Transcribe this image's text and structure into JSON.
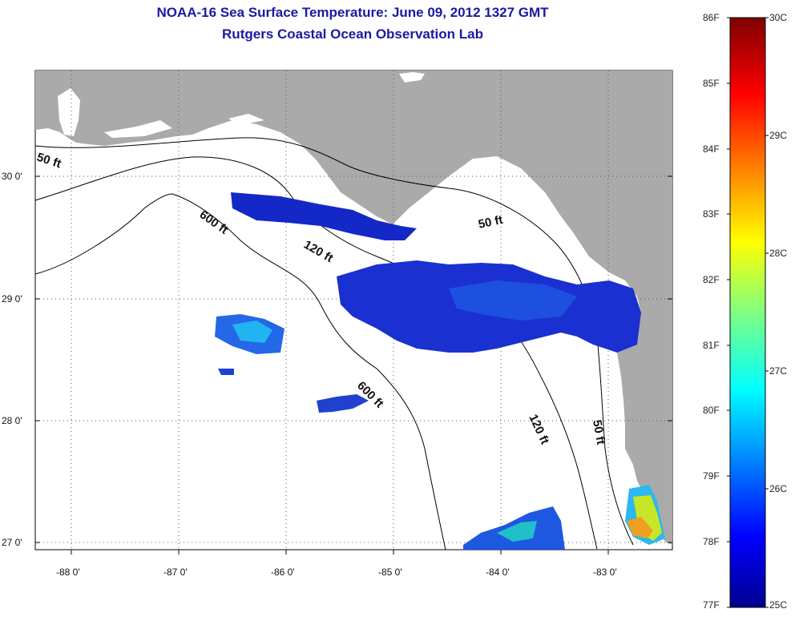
{
  "title": "NOAA-16 Sea Surface Temperature:  June 09, 2012 1327 GMT",
  "subtitle": "Rutgers Coastal Ocean Observation Lab",
  "lat_labels": [
    "30 0'",
    "29 0'",
    "28 0'",
    "27 0'"
  ],
  "lon_labels": [
    "-88 0'",
    "-87 0'",
    "-86 0'",
    "-85 0'",
    "-84 0'",
    "-83 0'"
  ],
  "contour_labels": [
    "50 ft",
    "600 ft",
    "120 ft",
    "50 ft",
    "600 ft",
    "120 ft",
    "50 ft"
  ],
  "colorbar": {
    "f_labels": [
      "86F",
      "85F",
      "84F",
      "83F",
      "82F",
      "81F",
      "80F",
      "79F",
      "78F",
      "77F"
    ],
    "c_labels": [
      "30C",
      "29C",
      "28C",
      "27C",
      "26C",
      "25C"
    ]
  },
  "colors": {
    "land": "#aaaaaa",
    "title": "#1a1aa0"
  }
}
